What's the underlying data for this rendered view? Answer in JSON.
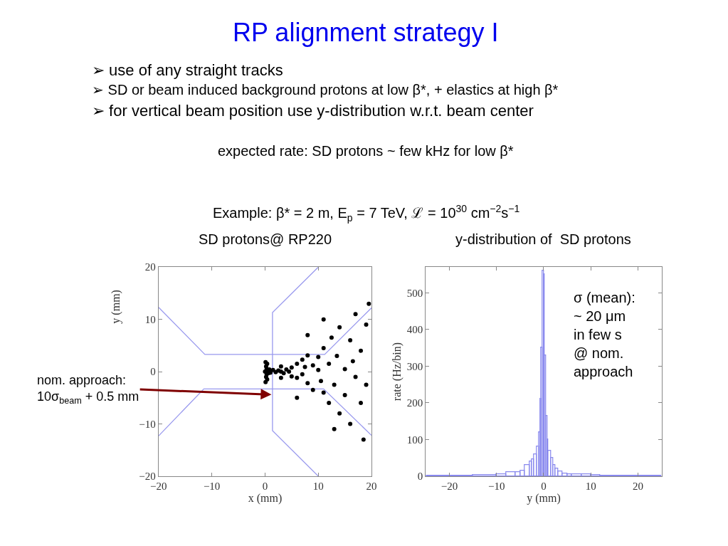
{
  "chart_data": [
    {
      "type": "other",
      "title": "RP alignment strategy I",
      "annotations": [
        "➢ use of any straight tracks",
        "➢ SD or beam induced background protons at low β*, + elastics at high β*",
        "➢ for vertical beam position use y-distribution w.r.t. beam center",
        "expected rate: SD protons ~ few kHz for low β*",
        "Example: β* = 2 m, E$_{p}$ = 7 TeV, ℒ = 10$^{30}$ cm$^{−2}$s$^{−1}$"
      ]
    },
    {
      "type": "scatter",
      "title": "SD protons@ RP220",
      "xlabel": "x (mm)",
      "ylabel": "y (mm)",
      "xlim": [
        -20,
        20
      ],
      "ylim": [
        -20,
        20
      ],
      "xticks": [
        -20,
        -10,
        0,
        10,
        20
      ],
      "yticks": [
        -20,
        -10,
        0,
        10,
        20
      ],
      "grid": false,
      "annotations": [
        {
          "text": "nom. approach:\n10σ$_{beam}$ + 0.5 mm",
          "x": 1.2,
          "y": -4.4
        }
      ],
      "series": [
        {
          "type": "line",
          "color": "#9999ee",
          "x": [
            -20,
            -11.3,
            11.2,
            20
          ],
          "values": [
            12.3,
            3.3,
            3.3,
            12.2
          ]
        },
        {
          "type": "line",
          "color": "#9999ee",
          "x": [
            -20,
            -11.5,
            11,
            20
          ],
          "values": [
            -12.3,
            -3.3,
            -3.3,
            -12.2
          ]
        },
        {
          "type": "line",
          "color": "#9999ee",
          "x": [
            10,
            1.4,
            1.4,
            10
          ],
          "values": [
            20,
            11.3,
            -11.3,
            -20
          ]
        },
        {
          "type": "scatter",
          "color": "#000000",
          "marker": "circle",
          "x": [
            0,
            0.1,
            0.1,
            0.2,
            0.2,
            0.3,
            0.3,
            0.4,
            0.4,
            0.5,
            0.6,
            0.8,
            1,
            1.5,
            2,
            2.5,
            3,
            3.5,
            4,
            4.5,
            5,
            5,
            6,
            6,
            7,
            7,
            7.5,
            8,
            8,
            9,
            9,
            10,
            10,
            10.5,
            11,
            11,
            12,
            12,
            12.5,
            13,
            13.5,
            14,
            14,
            15,
            15,
            16,
            16,
            16.5,
            17,
            17,
            18,
            18,
            18.5,
            19,
            19,
            19.5,
            8,
            6,
            11,
            13,
            3,
            3
          ],
          "values": [
            0,
            1.8,
            -2,
            1,
            -1,
            0.5,
            -0.5,
            1.5,
            -1.5,
            0.2,
            -0.3,
            0.4,
            -0.2,
            0.3,
            -0.1,
            0.2,
            0,
            -0.3,
            0.4,
            0,
            0.8,
            -0.9,
            1.5,
            -1.2,
            2.3,
            -0.5,
            0.9,
            -2.2,
            3.1,
            1.2,
            -3.5,
            0.3,
            2.8,
            -1.8,
            4.5,
            -4,
            1.5,
            -6,
            6.5,
            -2.5,
            3,
            -8,
            8.5,
            0.5,
            -4.5,
            6,
            -10,
            2,
            -1,
            11,
            -6,
            4,
            -13,
            9,
            -2.5,
            13,
            7,
            -5,
            10,
            -11,
            1,
            -1.2
          ]
        }
      ]
    },
    {
      "type": "histogram",
      "title": "y-distribution of  SD protons",
      "xlabel": "y (mm)",
      "ylabel": "rate (Hz/bin)",
      "color": "#8888ee",
      "xlim": [
        -25,
        25
      ],
      "ylim": [
        0,
        570
      ],
      "xticks": [
        -20,
        -10,
        0,
        10,
        20
      ],
      "yticks": [
        0,
        100,
        200,
        300,
        400,
        500
      ],
      "grid": false,
      "annotations": [
        "σ (mean):\n~ 20 μm\nin few s\n@ nom.\napproach"
      ],
      "bins": [
        -25,
        -20,
        -15,
        -10,
        -8,
        -6,
        -5,
        -4,
        -3,
        -2.5,
        -2,
        -1.5,
        -1,
        -0.75,
        -0.5,
        -0.25,
        0,
        0.25,
        0.5,
        0.75,
        1,
        1.5,
        2,
        2.5,
        3,
        4,
        5,
        6,
        8,
        10,
        12,
        15,
        20,
        25
      ],
      "values": [
        1,
        2,
        3,
        5,
        10,
        10,
        15,
        30,
        40,
        45,
        60,
        80,
        120,
        210,
        350,
        560,
        550,
        330,
        165,
        100,
        70,
        50,
        30,
        20,
        12,
        8,
        5,
        5,
        5,
        3,
        2,
        1,
        1
      ]
    }
  ]
}
